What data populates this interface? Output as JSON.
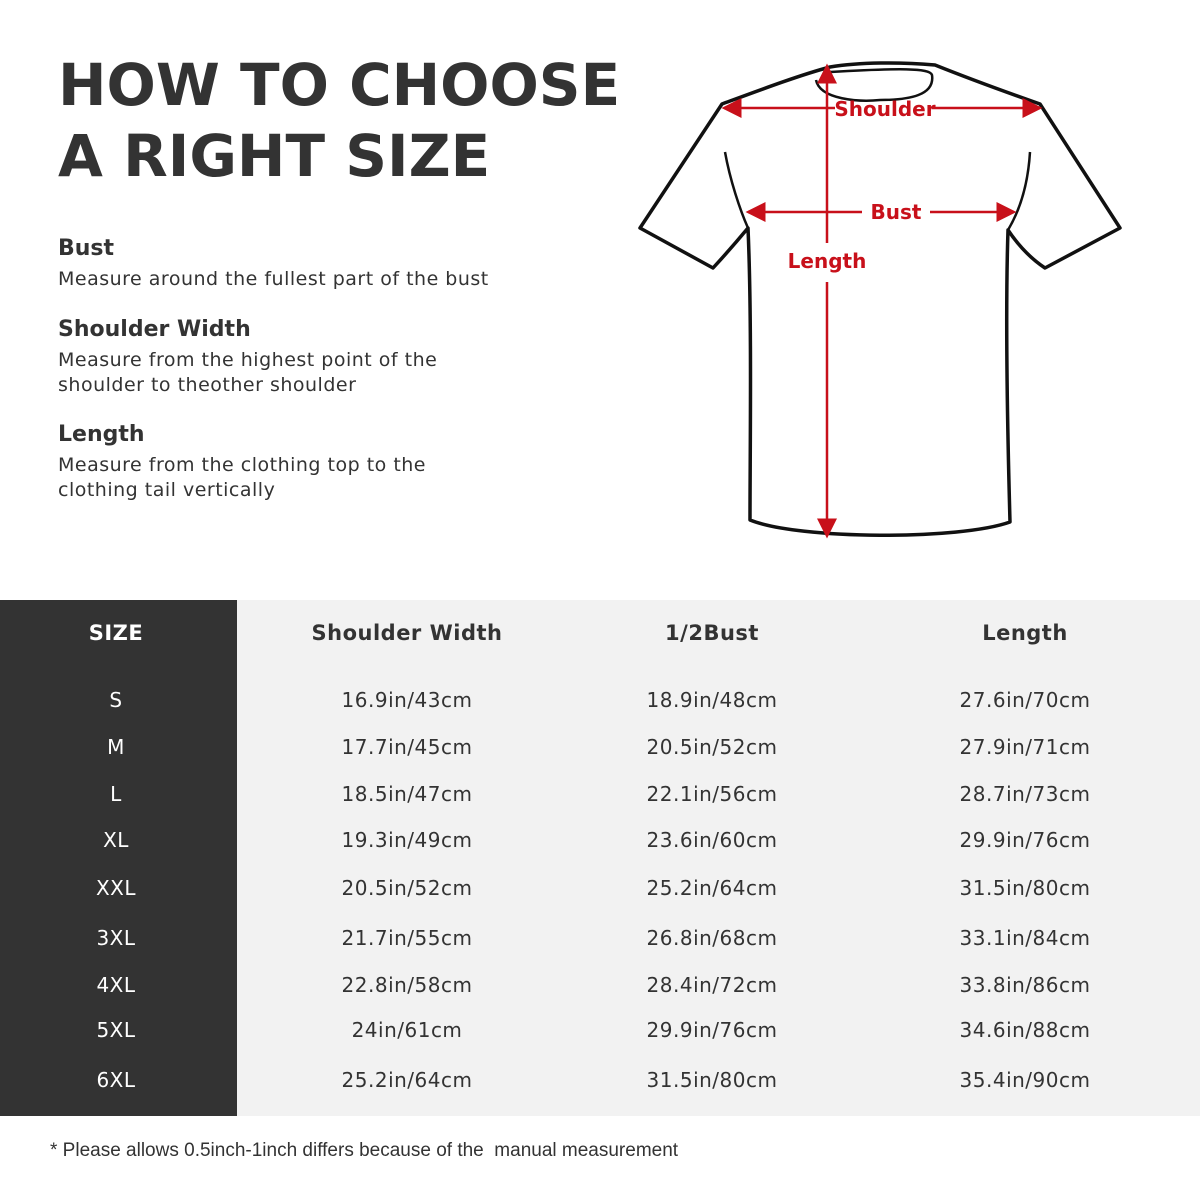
{
  "title": {
    "line1": "HOW TO CHOOSE",
    "line2": "A RIGHT SIZE"
  },
  "guide": [
    {
      "heading": "Bust",
      "lines": [
        "Measure around the fullest part of the bust"
      ]
    },
    {
      "heading": "Shoulder Width",
      "lines": [
        "Measure from the highest point of the",
        "shoulder to theother shoulder"
      ]
    },
    {
      "heading": "Length",
      "lines": [
        "Measure from the clothing top to the",
        "clothing tail vertically"
      ]
    }
  ],
  "diagram": {
    "shoulder": "Shoulder",
    "bust": "Bust",
    "length": "Length",
    "accent_color": "#c8101a"
  },
  "table": {
    "headers": [
      "SIZE",
      "Shoulder Width",
      "1/2Bust",
      "Length"
    ],
    "rows": [
      [
        "S",
        "16.9in/43cm",
        "18.9in/48cm",
        "27.6in/70cm"
      ],
      [
        "M",
        "17.7in/45cm",
        "20.5in/52cm",
        "27.9in/71cm"
      ],
      [
        "L",
        "18.5in/47cm",
        "22.1in/56cm",
        "28.7in/73cm"
      ],
      [
        "XL",
        "19.3in/49cm",
        "23.6in/60cm",
        "29.9in/76cm"
      ],
      [
        "XXL",
        "20.5in/52cm",
        "25.2in/64cm",
        "31.5in/80cm"
      ],
      [
        "3XL",
        "21.7in/55cm",
        "26.8in/68cm",
        "33.1in/84cm"
      ],
      [
        "4XL",
        "22.8in/58cm",
        "28.4in/72cm",
        "33.8in/86cm"
      ],
      [
        "5XL",
        "24in/61cm",
        "29.9in/76cm",
        "34.6in/88cm"
      ],
      [
        "6XL",
        "25.2in/64cm",
        "31.5in/80cm",
        "35.4in/90cm"
      ]
    ]
  },
  "note": "* Please allows 0.5inch-1inch differs because of the  manual measurement"
}
